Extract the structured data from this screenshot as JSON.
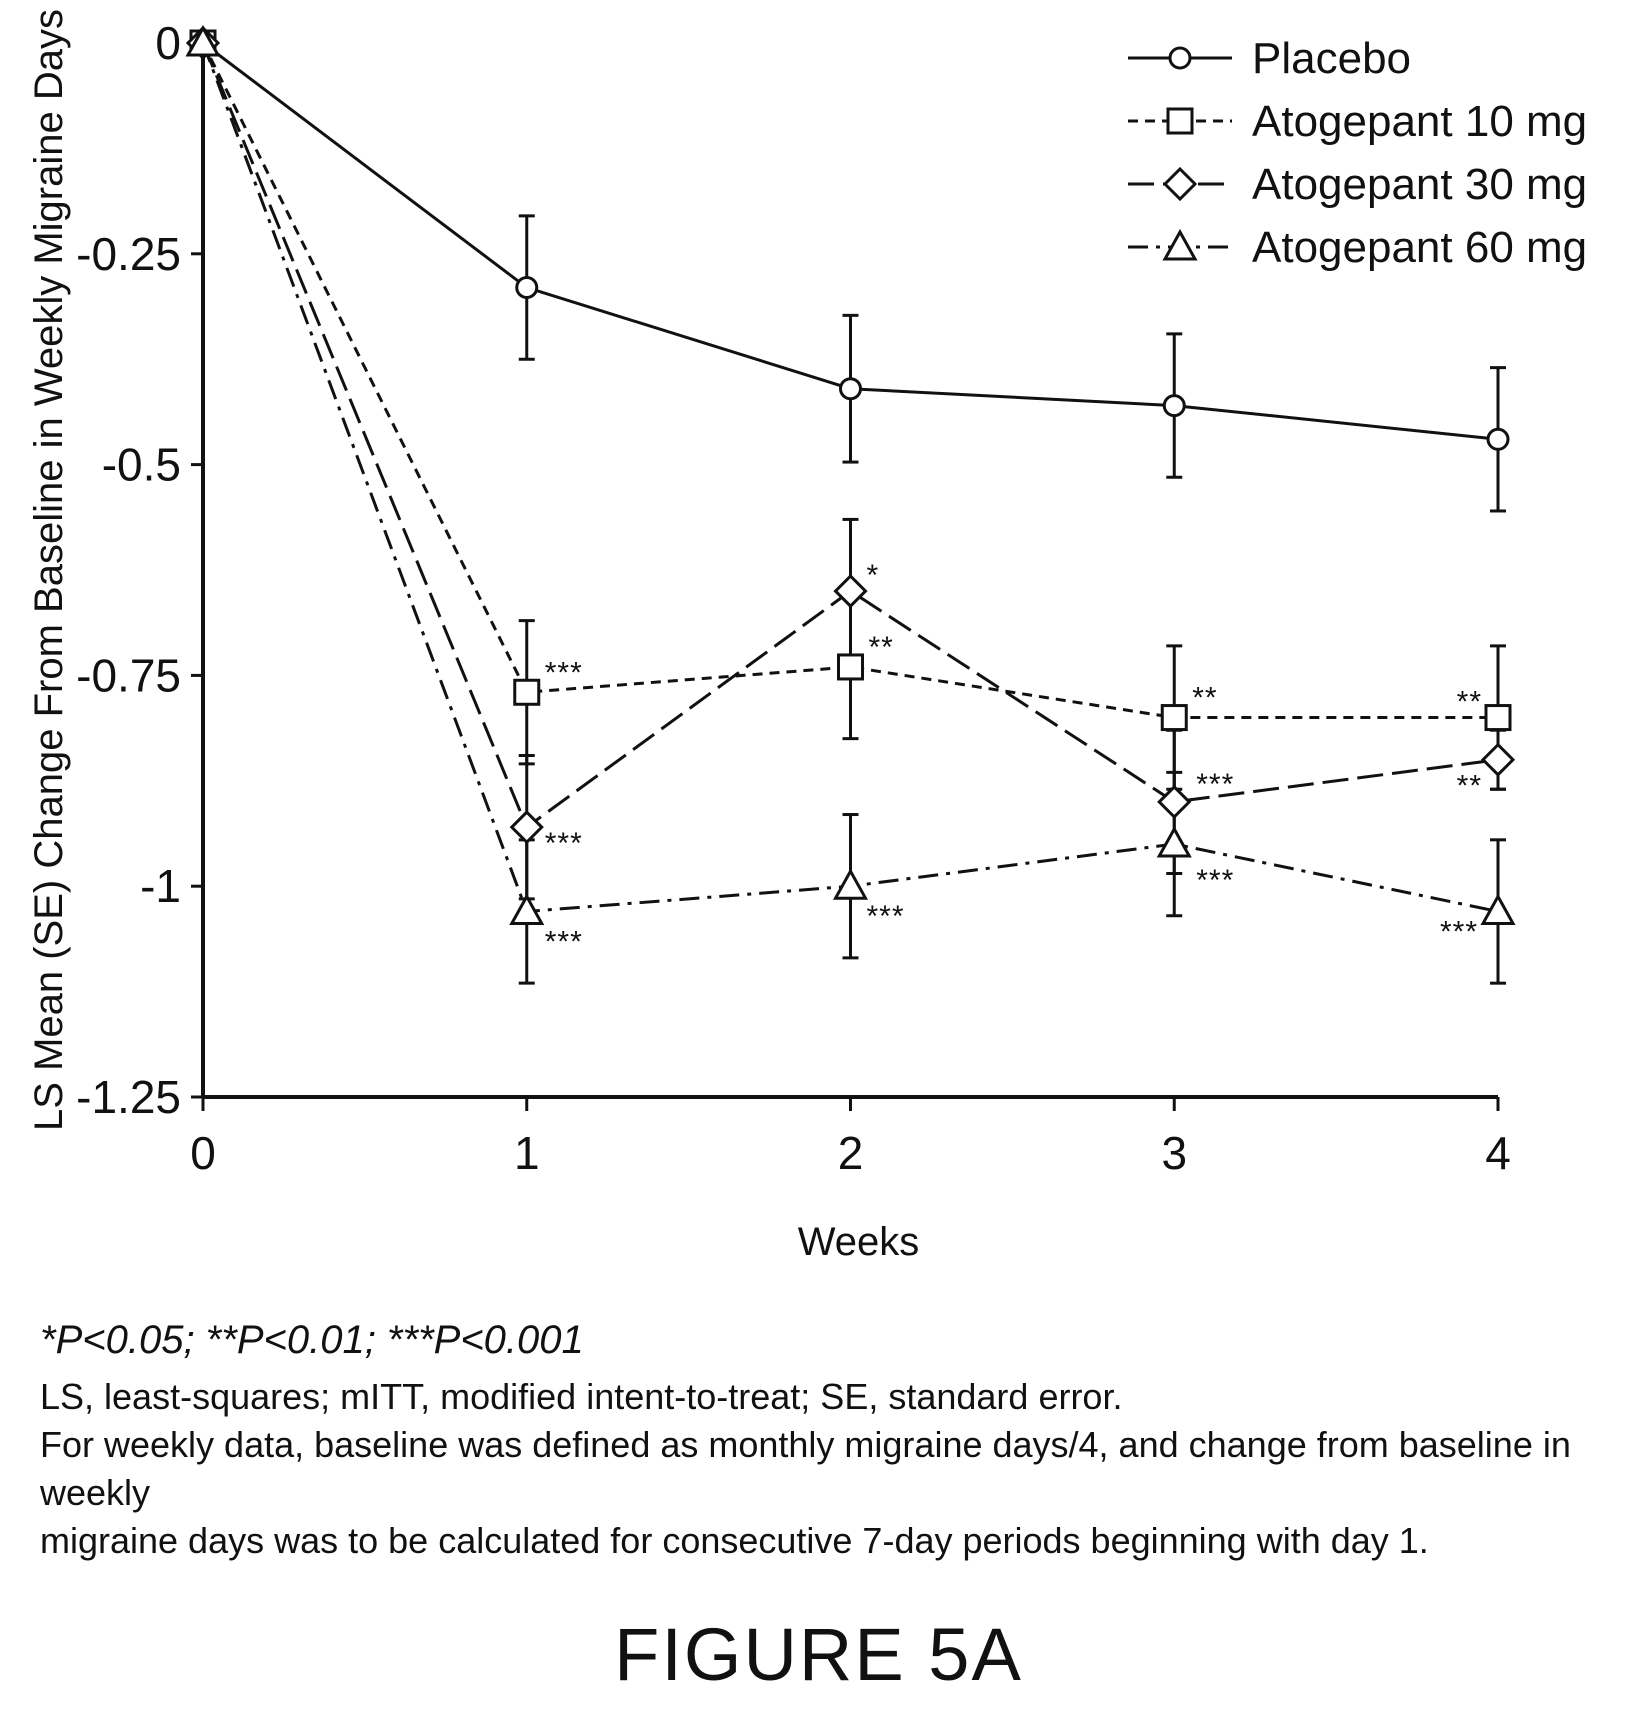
{
  "chart_data": {
    "type": "line",
    "xlabel": "Weeks",
    "ylabel": "LS Mean (SE) Change From Baseline in Weekly Migraine Days",
    "x": [
      0,
      1,
      2,
      3,
      4
    ],
    "xticks": [
      "0",
      "1",
      "2",
      "3",
      "4"
    ],
    "yticks": [
      {
        "value": 0,
        "label": "0"
      },
      {
        "value": -0.25,
        "label": "-0.25"
      },
      {
        "value": -0.5,
        "label": "-0.5"
      },
      {
        "value": -0.75,
        "label": "-0.75"
      },
      {
        "value": -1,
        "label": "-1"
      },
      {
        "value": -1.25,
        "label": "-1.25"
      }
    ],
    "xlim": [
      0,
      4
    ],
    "ylim": [
      -1.25,
      0
    ],
    "grid": false,
    "legend_position": "top-right",
    "series": [
      {
        "name": "Placebo",
        "marker": "circle",
        "dash": "solid",
        "values": [
          0,
          -0.29,
          -0.41,
          -0.43,
          -0.47
        ],
        "se": [
          0,
          0.085,
          0.087,
          0.085,
          0.085
        ],
        "sig": [
          "",
          "",
          "",
          "",
          ""
        ]
      },
      {
        "name": "Atogepant 10 mg",
        "marker": "square",
        "dash": "short-dash",
        "values": [
          0,
          -0.77,
          -0.74,
          -0.8,
          -0.8
        ],
        "se": [
          0,
          0.085,
          0.085,
          0.085,
          0.085
        ],
        "sig": [
          "",
          "***",
          "**",
          "**",
          "**"
        ]
      },
      {
        "name": "Atogepant 30 mg",
        "marker": "diamond",
        "dash": "long-dash",
        "values": [
          0,
          -0.93,
          -0.65,
          -0.9,
          -0.85
        ],
        "se": [
          0,
          0.085,
          0.085,
          0.085,
          0.035
        ],
        "sig": [
          "",
          "***",
          "*",
          "***",
          "**"
        ]
      },
      {
        "name": "Atogepant 60 mg",
        "marker": "triangle",
        "dash": "dash-dot",
        "values": [
          0,
          -1.03,
          -1.0,
          -0.95,
          -1.03
        ],
        "se": [
          0,
          0.085,
          0.085,
          0.085,
          0.085
        ],
        "sig": [
          "",
          "***",
          "***",
          "***",
          "***"
        ]
      }
    ]
  },
  "footnotes": {
    "significance": "*P<0.05; **P<0.01; ***P<0.001",
    "abbreviations": "LS, least-squares; mITT, modified intent-to-treat; SE, standard error.",
    "method_line1": "For weekly data, baseline was defined as monthly migraine days/4, and change from baseline in weekly",
    "method_line2": "migraine days was to be calculated for consecutive 7-day periods beginning with day 1."
  },
  "figure_label": "FIGURE 5A"
}
